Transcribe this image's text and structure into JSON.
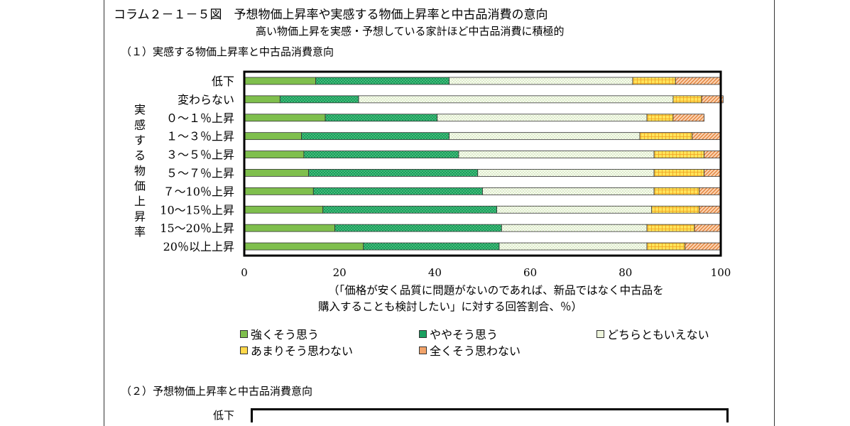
{
  "title": "コラム２－１－５図　予想物価上昇率や実感する物価上昇率と中古品消費の意向",
  "subtitle": "高い物価上昇を実感・予想している家計ほど中古品消費に積極的",
  "section1": "（１）実感する物価上昇率と中古品消費意向",
  "section2": "（２）予想物価上昇率と中古品消費意向",
  "section2_first_label": "低下",
  "chart_data": {
    "type": "bar",
    "orientation": "horizontal",
    "stacked": true,
    "ylabel": "実感する物価上昇率",
    "xlabel_line1": "（「価格が安く品質に問題がないのであれば、新品ではなく中古品を",
    "xlabel_line2": "購入することも検討したい」に対する回答割合、％）",
    "xlim": [
      0,
      100
    ],
    "xticks": [
      "0",
      "20",
      "40",
      "60",
      "80",
      "100"
    ],
    "categories": [
      "低下",
      "変わらない",
      "０～１％上昇",
      "１～３％上昇",
      "３～５％上昇",
      "５～７％上昇",
      "７～10％上昇",
      "10～15％上昇",
      "15～20％上昇",
      "20％以上上昇"
    ],
    "series": [
      {
        "name": "強くそう思う",
        "color": "#7fbf4d",
        "values": [
          15,
          7.5,
          17,
          12,
          12.5,
          13.5,
          14.5,
          16.5,
          19,
          25
        ]
      },
      {
        "name": "ややそう思う",
        "color": "#1aa060",
        "values": [
          28,
          16.5,
          23.5,
          31,
          32.5,
          35.5,
          35.5,
          36.5,
          35,
          28.5
        ]
      },
      {
        "name": "どちらともいえない",
        "color": "#eef5dc",
        "values": [
          38.5,
          66,
          44,
          40,
          41,
          37,
          36,
          32.5,
          30.5,
          31
        ]
      },
      {
        "name": "あまりそう思わない",
        "color": "#ffd84a",
        "values": [
          9,
          6,
          5.5,
          11,
          10.5,
          10.5,
          9.5,
          10,
          10,
          8
        ]
      },
      {
        "name": "全くそう思わない",
        "color": "#f2a36a",
        "values": [
          9.5,
          4.5,
          6.5,
          6,
          3.5,
          3.5,
          4.5,
          4.5,
          5.5,
          7.5
        ]
      }
    ],
    "grid": false,
    "legend_position": "bottom"
  }
}
